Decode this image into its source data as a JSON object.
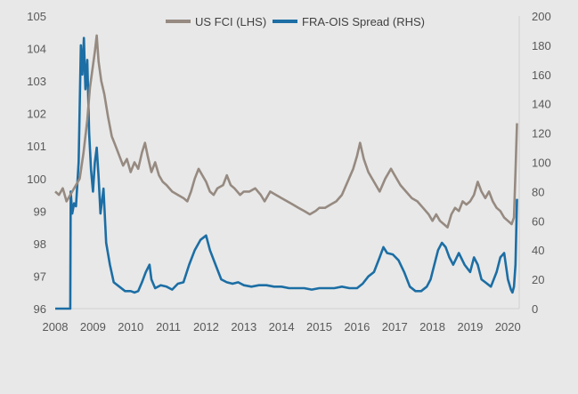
{
  "chart_data": {
    "type": "line",
    "title": "",
    "xlabel": "",
    "ylabel_left": "",
    "ylabel_right": "",
    "legend_position": "top-center",
    "grid": false,
    "x_ticks": [
      "2008",
      "2009",
      "2010",
      "2011",
      "2012",
      "2013",
      "2014",
      "2015",
      "2016",
      "2017",
      "2018",
      "2019",
      "2020"
    ],
    "x_range": [
      2008.0,
      2020.3
    ],
    "y_left_ticks": [
      "96",
      "97",
      "98",
      "99",
      "100",
      "101",
      "102",
      "103",
      "104",
      "105"
    ],
    "y_left_range": [
      96,
      105
    ],
    "y_right_ticks": [
      "0",
      "20",
      "40",
      "60",
      "80",
      "100",
      "120",
      "140",
      "160",
      "180",
      "200"
    ],
    "y_right_range": [
      0,
      200
    ],
    "series": [
      {
        "name": "US FCI (LHS)",
        "axis": "left",
        "color": "#968a81",
        "points": [
          [
            2008.0,
            99.6
          ],
          [
            2008.1,
            99.5
          ],
          [
            2008.2,
            99.7
          ],
          [
            2008.3,
            99.3
          ],
          [
            2008.4,
            99.5
          ],
          [
            2008.55,
            99.8
          ],
          [
            2008.65,
            100.0
          ],
          [
            2008.75,
            100.8
          ],
          [
            2008.85,
            101.8
          ],
          [
            2008.92,
            102.8
          ],
          [
            2008.98,
            103.3
          ],
          [
            2009.05,
            103.9
          ],
          [
            2009.1,
            104.4
          ],
          [
            2009.15,
            103.6
          ],
          [
            2009.22,
            103.0
          ],
          [
            2009.3,
            102.6
          ],
          [
            2009.4,
            101.9
          ],
          [
            2009.5,
            101.3
          ],
          [
            2009.6,
            101.0
          ],
          [
            2009.7,
            100.7
          ],
          [
            2009.8,
            100.4
          ],
          [
            2009.9,
            100.6
          ],
          [
            2010.0,
            100.2
          ],
          [
            2010.1,
            100.5
          ],
          [
            2010.2,
            100.3
          ],
          [
            2010.3,
            100.8
          ],
          [
            2010.38,
            101.1
          ],
          [
            2010.45,
            100.7
          ],
          [
            2010.55,
            100.2
          ],
          [
            2010.65,
            100.5
          ],
          [
            2010.75,
            100.1
          ],
          [
            2010.85,
            99.9
          ],
          [
            2010.95,
            99.8
          ],
          [
            2011.1,
            99.6
          ],
          [
            2011.25,
            99.5
          ],
          [
            2011.4,
            99.4
          ],
          [
            2011.5,
            99.3
          ],
          [
            2011.6,
            99.6
          ],
          [
            2011.7,
            100.0
          ],
          [
            2011.8,
            100.3
          ],
          [
            2011.9,
            100.1
          ],
          [
            2012.0,
            99.9
          ],
          [
            2012.1,
            99.6
          ],
          [
            2012.2,
            99.5
          ],
          [
            2012.3,
            99.7
          ],
          [
            2012.45,
            99.8
          ],
          [
            2012.55,
            100.1
          ],
          [
            2012.65,
            99.8
          ],
          [
            2012.75,
            99.7
          ],
          [
            2012.9,
            99.5
          ],
          [
            2013.0,
            99.6
          ],
          [
            2013.15,
            99.6
          ],
          [
            2013.3,
            99.7
          ],
          [
            2013.45,
            99.5
          ],
          [
            2013.55,
            99.3
          ],
          [
            2013.7,
            99.6
          ],
          [
            2013.85,
            99.5
          ],
          [
            2014.0,
            99.4
          ],
          [
            2014.15,
            99.3
          ],
          [
            2014.3,
            99.2
          ],
          [
            2014.45,
            99.1
          ],
          [
            2014.6,
            99.0
          ],
          [
            2014.75,
            98.9
          ],
          [
            2014.9,
            99.0
          ],
          [
            2015.0,
            99.1
          ],
          [
            2015.15,
            99.1
          ],
          [
            2015.3,
            99.2
          ],
          [
            2015.45,
            99.3
          ],
          [
            2015.6,
            99.5
          ],
          [
            2015.75,
            99.9
          ],
          [
            2015.9,
            100.3
          ],
          [
            2016.0,
            100.7
          ],
          [
            2016.08,
            101.1
          ],
          [
            2016.18,
            100.6
          ],
          [
            2016.3,
            100.2
          ],
          [
            2016.45,
            99.9
          ],
          [
            2016.6,
            99.6
          ],
          [
            2016.75,
            100.0
          ],
          [
            2016.9,
            100.3
          ],
          [
            2017.0,
            100.1
          ],
          [
            2017.15,
            99.8
          ],
          [
            2017.3,
            99.6
          ],
          [
            2017.45,
            99.4
          ],
          [
            2017.6,
            99.3
          ],
          [
            2017.75,
            99.1
          ],
          [
            2017.9,
            98.9
          ],
          [
            2018.0,
            98.7
          ],
          [
            2018.1,
            98.9
          ],
          [
            2018.2,
            98.7
          ],
          [
            2018.3,
            98.6
          ],
          [
            2018.4,
            98.5
          ],
          [
            2018.5,
            98.9
          ],
          [
            2018.6,
            99.1
          ],
          [
            2018.7,
            99.0
          ],
          [
            2018.8,
            99.3
          ],
          [
            2018.9,
            99.2
          ],
          [
            2019.0,
            99.3
          ],
          [
            2019.1,
            99.5
          ],
          [
            2019.2,
            99.9
          ],
          [
            2019.3,
            99.6
          ],
          [
            2019.4,
            99.4
          ],
          [
            2019.5,
            99.6
          ],
          [
            2019.6,
            99.3
          ],
          [
            2019.7,
            99.1
          ],
          [
            2019.8,
            99.0
          ],
          [
            2019.9,
            98.8
          ],
          [
            2020.0,
            98.7
          ],
          [
            2020.1,
            98.6
          ],
          [
            2020.16,
            98.8
          ],
          [
            2020.2,
            100.2
          ],
          [
            2020.24,
            101.7
          ]
        ]
      },
      {
        "name": "FRA-OIS Spread (RHS)",
        "axis": "right",
        "color": "#1c6ea4",
        "points": [
          [
            2008.0,
            0
          ],
          [
            2008.4,
            0
          ],
          [
            2008.41,
            80
          ],
          [
            2008.45,
            65
          ],
          [
            2008.5,
            72
          ],
          [
            2008.55,
            70
          ],
          [
            2008.62,
            100
          ],
          [
            2008.68,
            180
          ],
          [
            2008.72,
            160
          ],
          [
            2008.76,
            185
          ],
          [
            2008.8,
            150
          ],
          [
            2008.85,
            170
          ],
          [
            2008.9,
            120
          ],
          [
            2008.95,
            95
          ],
          [
            2009.0,
            80
          ],
          [
            2009.05,
            100
          ],
          [
            2009.1,
            110
          ],
          [
            2009.15,
            90
          ],
          [
            2009.2,
            65
          ],
          [
            2009.28,
            82
          ],
          [
            2009.35,
            45
          ],
          [
            2009.45,
            30
          ],
          [
            2009.55,
            18
          ],
          [
            2009.7,
            15
          ],
          [
            2009.85,
            12
          ],
          [
            2010.0,
            12
          ],
          [
            2010.1,
            11
          ],
          [
            2010.2,
            12
          ],
          [
            2010.3,
            18
          ],
          [
            2010.4,
            25
          ],
          [
            2010.5,
            30
          ],
          [
            2010.55,
            20
          ],
          [
            2010.65,
            14
          ],
          [
            2010.8,
            16
          ],
          [
            2010.95,
            15
          ],
          [
            2011.1,
            13
          ],
          [
            2011.25,
            17
          ],
          [
            2011.4,
            18
          ],
          [
            2011.55,
            30
          ],
          [
            2011.7,
            40
          ],
          [
            2011.85,
            47
          ],
          [
            2012.0,
            50
          ],
          [
            2012.1,
            40
          ],
          [
            2012.25,
            30
          ],
          [
            2012.4,
            20
          ],
          [
            2012.55,
            18
          ],
          [
            2012.7,
            17
          ],
          [
            2012.85,
            18
          ],
          [
            2013.0,
            16
          ],
          [
            2013.2,
            15
          ],
          [
            2013.4,
            16
          ],
          [
            2013.6,
            16
          ],
          [
            2013.8,
            15
          ],
          [
            2014.0,
            15
          ],
          [
            2014.2,
            14
          ],
          [
            2014.4,
            14
          ],
          [
            2014.6,
            14
          ],
          [
            2014.8,
            13
          ],
          [
            2015.0,
            14
          ],
          [
            2015.2,
            14
          ],
          [
            2015.4,
            14
          ],
          [
            2015.6,
            15
          ],
          [
            2015.8,
            14
          ],
          [
            2016.0,
            14
          ],
          [
            2016.15,
            17
          ],
          [
            2016.3,
            22
          ],
          [
            2016.45,
            25
          ],
          [
            2016.6,
            35
          ],
          [
            2016.7,
            42
          ],
          [
            2016.8,
            38
          ],
          [
            2016.95,
            37
          ],
          [
            2017.1,
            33
          ],
          [
            2017.25,
            25
          ],
          [
            2017.4,
            15
          ],
          [
            2017.55,
            12
          ],
          [
            2017.7,
            12
          ],
          [
            2017.85,
            15
          ],
          [
            2017.95,
            20
          ],
          [
            2018.05,
            30
          ],
          [
            2018.15,
            40
          ],
          [
            2018.25,
            45
          ],
          [
            2018.35,
            42
          ],
          [
            2018.45,
            35
          ],
          [
            2018.55,
            30
          ],
          [
            2018.7,
            38
          ],
          [
            2018.85,
            30
          ],
          [
            2019.0,
            25
          ],
          [
            2019.1,
            35
          ],
          [
            2019.2,
            30
          ],
          [
            2019.3,
            20
          ],
          [
            2019.4,
            18
          ],
          [
            2019.55,
            15
          ],
          [
            2019.7,
            25
          ],
          [
            2019.8,
            35
          ],
          [
            2019.9,
            38
          ],
          [
            2020.0,
            20
          ],
          [
            2020.08,
            13
          ],
          [
            2020.12,
            11
          ],
          [
            2020.16,
            15
          ],
          [
            2020.2,
            30
          ],
          [
            2020.24,
            75
          ]
        ]
      }
    ]
  }
}
